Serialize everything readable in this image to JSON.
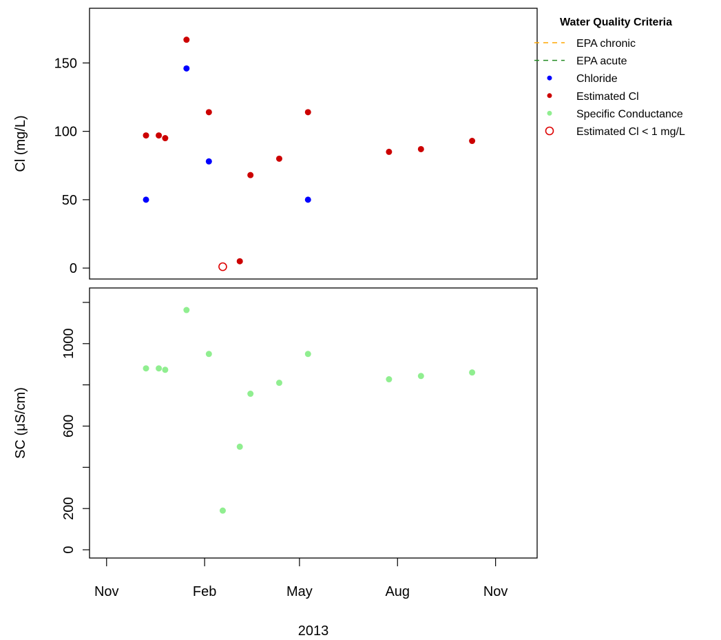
{
  "chart_data": [
    {
      "type": "scatter",
      "ylabel": "Cl (mg/L)",
      "xlim": [
        "2012-10-16",
        "2013-12-10"
      ],
      "ylim": [
        -8,
        190
      ],
      "yticks": [
        0,
        50,
        100,
        150
      ],
      "legend": {
        "position": "right",
        "title": "Water Quality Criteria",
        "entries": [
          {
            "label": "EPA chronic",
            "symbol": "dashed-line",
            "color": "#ffa500"
          },
          {
            "label": "EPA acute",
            "symbol": "dashed-line",
            "color": "#228b22"
          },
          {
            "label": "Chloride",
            "symbol": "point",
            "color": "#0000ff"
          },
          {
            "label": "Estimated Cl",
            "symbol": "point",
            "color": "#cc0000"
          },
          {
            "label": "Specific Conductance",
            "symbol": "point",
            "color": "#90ee90"
          },
          {
            "label": "Estimated Cl < 1 mg/L",
            "symbol": "open-circle",
            "color": "#dd0000"
          }
        ]
      },
      "series": [
        {
          "name": "Chloride",
          "color": "#0000ff",
          "marker": "point",
          "points": [
            {
              "x": "2012-12-08",
              "y": 50
            },
            {
              "x": "2013-01-15",
              "y": 146
            },
            {
              "x": "2013-02-05",
              "y": 78
            },
            {
              "x": "2013-05-09",
              "y": 50
            }
          ]
        },
        {
          "name": "Estimated Cl",
          "color": "#cc0000",
          "marker": "point",
          "points": [
            {
              "x": "2012-12-08",
              "y": 97
            },
            {
              "x": "2012-12-20",
              "y": 97
            },
            {
              "x": "2012-12-26",
              "y": 95
            },
            {
              "x": "2013-01-15",
              "y": 167
            },
            {
              "x": "2013-02-05",
              "y": 114
            },
            {
              "x": "2013-03-06",
              "y": 5
            },
            {
              "x": "2013-03-16",
              "y": 68
            },
            {
              "x": "2013-04-12",
              "y": 80
            },
            {
              "x": "2013-05-09",
              "y": 114
            },
            {
              "x": "2013-07-24",
              "y": 85
            },
            {
              "x": "2013-08-23",
              "y": 87
            },
            {
              "x": "2013-10-10",
              "y": 93
            }
          ]
        },
        {
          "name": "Estimated Cl < 1 mg/L",
          "color": "#dd0000",
          "marker": "open-circle",
          "points": [
            {
              "x": "2013-02-18",
              "y": 1
            }
          ]
        }
      ]
    },
    {
      "type": "scatter",
      "ylabel": "SC (μS/cm)",
      "xlabel": "2013",
      "xlim": [
        "2012-10-16",
        "2013-12-10"
      ],
      "ylim": [
        -40,
        1270
      ],
      "yticks": [
        0,
        200,
        600,
        1000
      ],
      "yticks_minor": [
        400,
        800,
        1200
      ],
      "xticks": [
        {
          "label": "Nov",
          "date": "2012-11-01"
        },
        {
          "label": "Feb",
          "date": "2013-02-01"
        },
        {
          "label": "May",
          "date": "2013-05-01"
        },
        {
          "label": "Aug",
          "date": "2013-08-01"
        },
        {
          "label": "Nov",
          "date": "2013-11-01"
        }
      ],
      "series": [
        {
          "name": "Specific Conductance",
          "color": "#90ee90",
          "marker": "point",
          "points": [
            {
              "x": "2012-12-08",
              "y": 880
            },
            {
              "x": "2012-12-20",
              "y": 880
            },
            {
              "x": "2012-12-26",
              "y": 873
            },
            {
              "x": "2013-01-15",
              "y": 1163
            },
            {
              "x": "2013-02-05",
              "y": 950
            },
            {
              "x": "2013-02-18",
              "y": 190
            },
            {
              "x": "2013-03-06",
              "y": 500
            },
            {
              "x": "2013-03-16",
              "y": 757
            },
            {
              "x": "2013-04-12",
              "y": 810
            },
            {
              "x": "2013-05-09",
              "y": 950
            },
            {
              "x": "2013-07-24",
              "y": 827
            },
            {
              "x": "2013-08-23",
              "y": 843
            },
            {
              "x": "2013-10-10",
              "y": 860
            }
          ]
        }
      ]
    }
  ]
}
